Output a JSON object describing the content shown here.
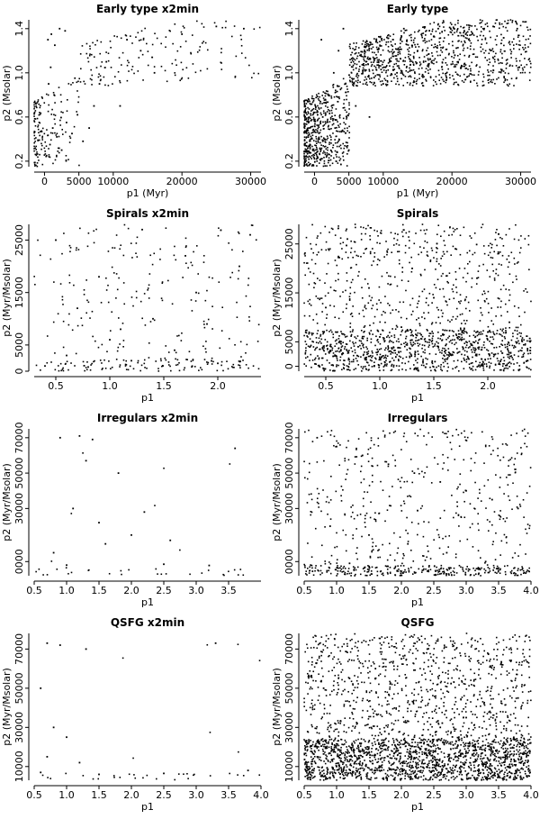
{
  "figure": {
    "background": "#ffffff",
    "point_color": "#000000"
  },
  "chart_data": [
    {
      "type": "scatter",
      "title": "Early type x2min",
      "xlabel": "p1 (Myr)",
      "ylabel": "p2 (Msolar)",
      "xlim": [
        -1500,
        31500
      ],
      "ylim": [
        0.15,
        1.48
      ],
      "xticks": [
        0,
        5000,
        10000,
        20000,
        30000
      ],
      "xtick_labels": [
        "0",
        "5000",
        "10000",
        "20000",
        "30000"
      ],
      "yticks": [
        0.2,
        0.6,
        1.0,
        1.4
      ],
      "ytick_labels": [
        "0.2",
        "0.6",
        "1.0",
        "1.4"
      ],
      "density": "sparse",
      "points": [
        [
          300,
          0.25
        ],
        [
          800,
          0.35
        ],
        [
          1200,
          0.5
        ],
        [
          1800,
          0.42
        ],
        [
          2500,
          0.3
        ],
        [
          3200,
          0.55
        ],
        [
          4000,
          0.45
        ],
        [
          4800,
          0.62
        ],
        [
          5600,
          0.38
        ],
        [
          6500,
          0.5
        ],
        [
          7200,
          0.7
        ],
        [
          500,
          1.3
        ],
        [
          1000,
          1.35
        ],
        [
          1500,
          1.25
        ],
        [
          2200,
          1.4
        ],
        [
          3000,
          1.38
        ],
        [
          600,
          0.9
        ],
        [
          900,
          1.05
        ],
        [
          1400,
          0.8
        ],
        [
          9000,
          1.1
        ],
        [
          12000,
          1.3
        ],
        [
          16000,
          1.0
        ],
        [
          20000,
          1.35
        ],
        [
          25000,
          1.42
        ],
        [
          29000,
          1.4
        ],
        [
          8000,
          0.9
        ],
        [
          14000,
          1.2
        ],
        [
          11000,
          0.7
        ]
      ]
    },
    {
      "type": "scatter",
      "title": "Early type",
      "xlabel": "p1 (Myr)",
      "ylabel": "p2 (Msolar)",
      "xlim": [
        -1500,
        31500
      ],
      "ylim": [
        0.15,
        1.48
      ],
      "xticks": [
        0,
        5000,
        10000,
        20000,
        30000
      ],
      "xtick_labels": [
        "0",
        "5000",
        "10000",
        "20000",
        "30000"
      ],
      "yticks": [
        0.2,
        0.6,
        1.0,
        1.4
      ],
      "ytick_labels": [
        "0.2",
        "0.6",
        "1.0",
        "1.4"
      ],
      "density": "dense",
      "points": [
        [
          300,
          0.22
        ],
        [
          700,
          0.4
        ],
        [
          1200,
          0.6
        ],
        [
          2000,
          0.8
        ],
        [
          2800,
          1.0
        ],
        [
          3500,
          1.2
        ],
        [
          4200,
          1.4
        ],
        [
          5000,
          0.3
        ],
        [
          6000,
          0.7
        ],
        [
          7500,
          1.1
        ],
        [
          9000,
          1.3
        ],
        [
          12000,
          1.0
        ],
        [
          15000,
          1.2
        ],
        [
          18000,
          1.4
        ],
        [
          22000,
          1.35
        ],
        [
          26000,
          1.42
        ],
        [
          29500,
          1.4
        ],
        [
          1000,
          1.3
        ],
        [
          1800,
          0.25
        ],
        [
          3000,
          0.5
        ],
        [
          4500,
          0.9
        ],
        [
          8000,
          0.6
        ],
        [
          10000,
          0.9
        ],
        [
          13000,
          1.4
        ]
      ]
    },
    {
      "type": "scatter",
      "title": "Spirals x2min",
      "xlabel": "p1",
      "ylabel": "p2 (Myr/Msolar)",
      "xlim": [
        0.3,
        2.4
      ],
      "ylim": [
        0,
        28000
      ],
      "xticks": [
        0.5,
        1.0,
        1.5,
        2.0
      ],
      "xtick_labels": [
        "0.5",
        "1.0",
        "1.5",
        "2.0"
      ],
      "yticks": [
        0,
        5000,
        15000,
        25000
      ],
      "ytick_labels": [
        "0",
        "5000",
        "15000",
        "25000"
      ],
      "density": "sparse",
      "points": [
        [
          0.4,
          1000
        ],
        [
          0.6,
          3000
        ],
        [
          0.8,
          800
        ],
        [
          1.0,
          6000
        ],
        [
          1.2,
          2000
        ],
        [
          1.4,
          10000
        ],
        [
          1.6,
          4000
        ],
        [
          1.8,
          15000
        ],
        [
          2.0,
          1500
        ],
        [
          2.2,
          20000
        ],
        [
          0.5,
          25000
        ],
        [
          0.9,
          18000
        ],
        [
          1.3,
          27000
        ],
        [
          1.7,
          22000
        ],
        [
          2.3,
          26000
        ],
        [
          0.7,
          12000
        ],
        [
          1.1,
          8000
        ],
        [
          1.9,
          9000
        ]
      ]
    },
    {
      "type": "scatter",
      "title": "Spirals",
      "xlabel": "p1",
      "ylabel": "p2 (Myr/Msolar)",
      "xlim": [
        0.3,
        2.4
      ],
      "ylim": [
        -1000,
        29000
      ],
      "xticks": [
        0.5,
        1.0,
        1.5,
        2.0
      ],
      "xtick_labels": [
        "0.5",
        "1.0",
        "1.5",
        "2.0"
      ],
      "yticks": [
        0,
        5000,
        15000,
        25000
      ],
      "ytick_labels": [
        "0",
        "5000",
        "15000",
        "25000"
      ],
      "density": "dense",
      "points": [
        [
          0.4,
          500
        ],
        [
          0.6,
          2000
        ],
        [
          0.8,
          4000
        ],
        [
          1.0,
          6000
        ],
        [
          1.2,
          8000
        ],
        [
          1.4,
          1000
        ],
        [
          1.6,
          3000
        ],
        [
          1.8,
          5000
        ],
        [
          2.0,
          7000
        ],
        [
          2.2,
          9000
        ],
        [
          0.5,
          12000
        ],
        [
          0.9,
          16000
        ],
        [
          1.3,
          20000
        ],
        [
          1.7,
          24000
        ],
        [
          2.1,
          27000
        ],
        [
          0.7,
          26000
        ],
        [
          1.5,
          14000
        ],
        [
          1.9,
          18000
        ]
      ]
    },
    {
      "type": "scatter",
      "title": "Irregulars x2min",
      "xlabel": "p1",
      "ylabel": "p2 (Myr/Msolar)",
      "xlim": [
        0.5,
        4.0
      ],
      "ylim": [
        -8000,
        75000
      ],
      "xticks": [
        0.5,
        1.0,
        1.5,
        2.0,
        2.5,
        3.0,
        3.5
      ],
      "xtick_labels": [
        "0.5",
        "1.0",
        "1.5",
        "2.0",
        "2.5",
        "3.0",
        "3.5"
      ],
      "yticks": [
        0,
        30000,
        50000,
        70000
      ],
      "ytick_labels": [
        "0000",
        "30000",
        "50000",
        "70000"
      ],
      "density": "very sparse",
      "points": [
        [
          0.9,
          70000
        ],
        [
          1.2,
          71000
        ],
        [
          1.4,
          69000
        ],
        [
          1.3,
          57000
        ],
        [
          1.8,
          50000
        ],
        [
          3.6,
          64000
        ],
        [
          1.1,
          30000
        ],
        [
          1.5,
          22000
        ],
        [
          2.2,
          28000
        ],
        [
          1.6,
          10000
        ],
        [
          2.0,
          15000
        ],
        [
          2.6,
          12000
        ],
        [
          0.8,
          5000
        ],
        [
          1.0,
          -2000
        ],
        [
          2.5,
          -1500
        ],
        [
          3.2,
          -2200
        ]
      ]
    },
    {
      "type": "scatter",
      "title": "Irregulars",
      "xlabel": "p1",
      "ylabel": "p2 (Myr/Msolar)",
      "xlim": [
        0.5,
        4.0
      ],
      "ylim": [
        -8000,
        75000
      ],
      "xticks": [
        0.5,
        1.0,
        1.5,
        2.0,
        2.5,
        3.0,
        3.5,
        4.0
      ],
      "xtick_labels": [
        "0.5",
        "1.0",
        "1.5",
        "2.0",
        "2.5",
        "3.0",
        "3.5",
        "4.0"
      ],
      "yticks": [
        0,
        30000,
        50000,
        70000
      ],
      "ytick_labels": [
        "0000",
        "30000",
        "50000",
        "70000"
      ],
      "density": "medium",
      "points": [
        [
          0.7,
          70000
        ],
        [
          1.0,
          65000
        ],
        [
          1.4,
          60000
        ],
        [
          1.8,
          55000
        ],
        [
          2.2,
          50000
        ],
        [
          2.6,
          45000
        ],
        [
          3.0,
          40000
        ],
        [
          3.4,
          35000
        ],
        [
          3.8,
          30000
        ],
        [
          0.9,
          20000
        ],
        [
          1.5,
          15000
        ],
        [
          2.1,
          10000
        ],
        [
          2.7,
          5000
        ],
        [
          3.3,
          0
        ],
        [
          0.6,
          -2000
        ],
        [
          1.2,
          -1000
        ]
      ]
    },
    {
      "type": "scatter",
      "title": "QSFG x2min",
      "xlabel": "p1",
      "ylabel": "p2 (Myr/Msolar)",
      "xlim": [
        0.5,
        4.0
      ],
      "ylim": [
        3000,
        78000
      ],
      "xticks": [
        0.5,
        1.0,
        1.5,
        2.0,
        2.5,
        3.0,
        3.5,
        4.0
      ],
      "xtick_labels": [
        "0.5",
        "1.0",
        "1.5",
        "2.0",
        "2.5",
        "3.0",
        "3.5",
        "4.0"
      ],
      "yticks": [
        10000,
        30000,
        50000,
        70000
      ],
      "ytick_labels": [
        "10000",
        "30000",
        "50000",
        "70000"
      ],
      "density": "very sparse",
      "points": [
        [
          0.7,
          73000
        ],
        [
          0.9,
          72000
        ],
        [
          1.3,
          70000
        ],
        [
          3.3,
          73000
        ],
        [
          0.6,
          50000
        ],
        [
          0.8,
          30000
        ],
        [
          1.0,
          25000
        ],
        [
          0.7,
          15000
        ],
        [
          1.2,
          12000
        ],
        [
          0.6,
          7000
        ],
        [
          1.5,
          6000
        ],
        [
          2.5,
          6500
        ],
        [
          3.8,
          8000
        ]
      ]
    },
    {
      "type": "scatter",
      "title": "QSFG",
      "xlabel": "p1",
      "ylabel": "p2 (Myr/Msolar)",
      "xlim": [
        0.5,
        4.0
      ],
      "ylim": [
        3000,
        78000
      ],
      "xticks": [
        0.5,
        1.0,
        1.5,
        2.0,
        2.5,
        3.0,
        3.5,
        4.0
      ],
      "xtick_labels": [
        "0.5",
        "1.0",
        "1.5",
        "2.0",
        "2.5",
        "3.0",
        "3.5",
        "4.0"
      ],
      "yticks": [
        10000,
        30000,
        50000,
        70000
      ],
      "ytick_labels": [
        "10000",
        "30000",
        "50000",
        "70000"
      ],
      "density": "very dense",
      "points": [
        [
          0.6,
          6000
        ],
        [
          1.0,
          10000
        ],
        [
          1.4,
          15000
        ],
        [
          1.8,
          20000
        ],
        [
          2.2,
          25000
        ],
        [
          2.6,
          30000
        ],
        [
          3.0,
          35000
        ],
        [
          3.4,
          40000
        ],
        [
          3.8,
          45000
        ],
        [
          0.8,
          50000
        ],
        [
          1.2,
          55000
        ],
        [
          1.6,
          60000
        ],
        [
          2.0,
          65000
        ],
        [
          2.4,
          70000
        ],
        [
          2.8,
          74000
        ],
        [
          3.2,
          8000
        ]
      ]
    }
  ]
}
